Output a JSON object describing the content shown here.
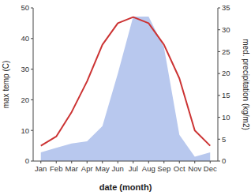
{
  "chart_data": {
    "type": "line",
    "x_label": "date (month)",
    "y_label": "max temp (C)",
    "y2_label": "med. precipitation (kg/m2)",
    "categories": [
      "Jan",
      "Feb",
      "Mar",
      "Apr",
      "May",
      "Jun",
      "Jul",
      "Aug",
      "Sep",
      "Oct",
      "Nov",
      "Dec"
    ],
    "series": [
      {
        "type": "area",
        "axis": "y2",
        "color": "#b8c8ee",
        "values": [
          2.0,
          3.0,
          4.0,
          4.5,
          8.0,
          20.0,
          33.0,
          33.0,
          26.0,
          6.0,
          1.0,
          2.0
        ]
      },
      {
        "type": "line",
        "color": "#cc3333",
        "values": [
          5,
          8,
          16,
          26,
          38,
          45,
          47,
          45,
          38,
          27,
          10,
          5
        ]
      }
    ],
    "ylim": [
      0,
      50
    ],
    "yticks": [
      0,
      10,
      20,
      30,
      40,
      50
    ],
    "y2lim": [
      0,
      35
    ],
    "y2ticks": [
      0,
      5,
      10,
      15,
      20,
      25,
      30,
      35
    ],
    "grid": false
  }
}
